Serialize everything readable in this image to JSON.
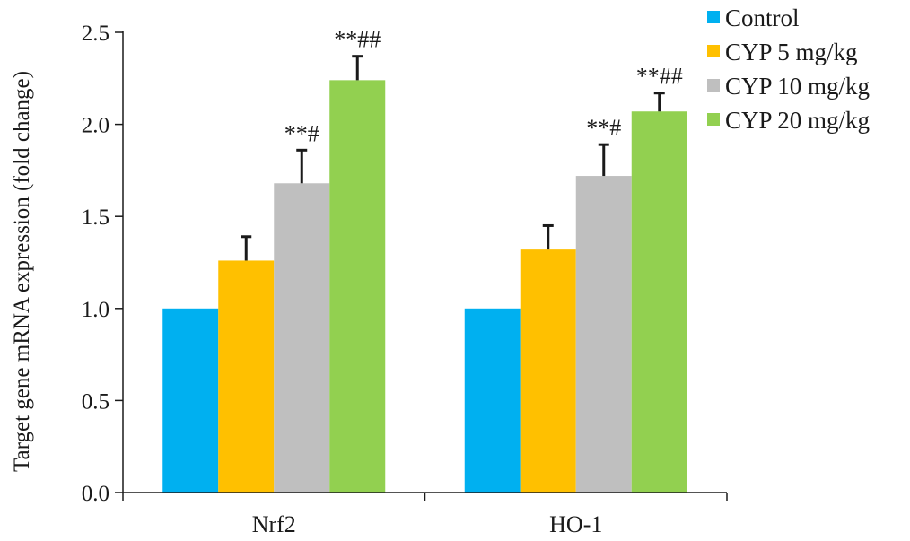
{
  "chart_data": {
    "type": "bar",
    "title": "",
    "xlabel": "",
    "ylabel": "Target gene mRNA expression (fold change)",
    "ylim": [
      0,
      2.5
    ],
    "yticks": [
      "0.0",
      "0.5",
      "1.0",
      "1.5",
      "2.0",
      "2.5"
    ],
    "categories": [
      "Nrf2",
      "HO-1"
    ],
    "series": [
      {
        "name": "Control",
        "color": "#00b0f0",
        "values": [
          1.0,
          1.0
        ],
        "errors": [
          0,
          0
        ],
        "annotations": [
          "",
          ""
        ]
      },
      {
        "name": "CYP 5 mg/kg",
        "color": "#ffc000",
        "values": [
          1.26,
          1.32
        ],
        "errors": [
          0.13,
          0.13
        ],
        "annotations": [
          "",
          ""
        ]
      },
      {
        "name": "CYP 10 mg/kg",
        "color": "#bfbfbf",
        "values": [
          1.68,
          1.72
        ],
        "errors": [
          0.18,
          0.17
        ],
        "annotations": [
          "**#",
          "**#"
        ]
      },
      {
        "name": "CYP 20 mg/kg",
        "color": "#92d050",
        "values": [
          2.24,
          2.07
        ],
        "errors": [
          0.13,
          0.1
        ],
        "annotations": [
          "**##",
          "**##"
        ]
      }
    ],
    "legend_position": "top-right",
    "grid": false
  }
}
